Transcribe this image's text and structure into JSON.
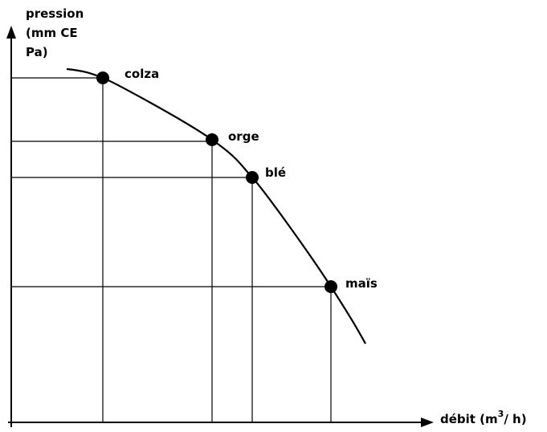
{
  "y_axis": {
    "lines": [
      "pression",
      "(mm CE",
      "Pa)"
    ]
  },
  "x_axis": {
    "label": "débit (m",
    "superscript": "3",
    "label_end": "/ h)"
  },
  "points": [
    {
      "label": "colza"
    },
    {
      "label": "orge"
    },
    {
      "label": "blé"
    },
    {
      "label": "maïs"
    }
  ]
}
